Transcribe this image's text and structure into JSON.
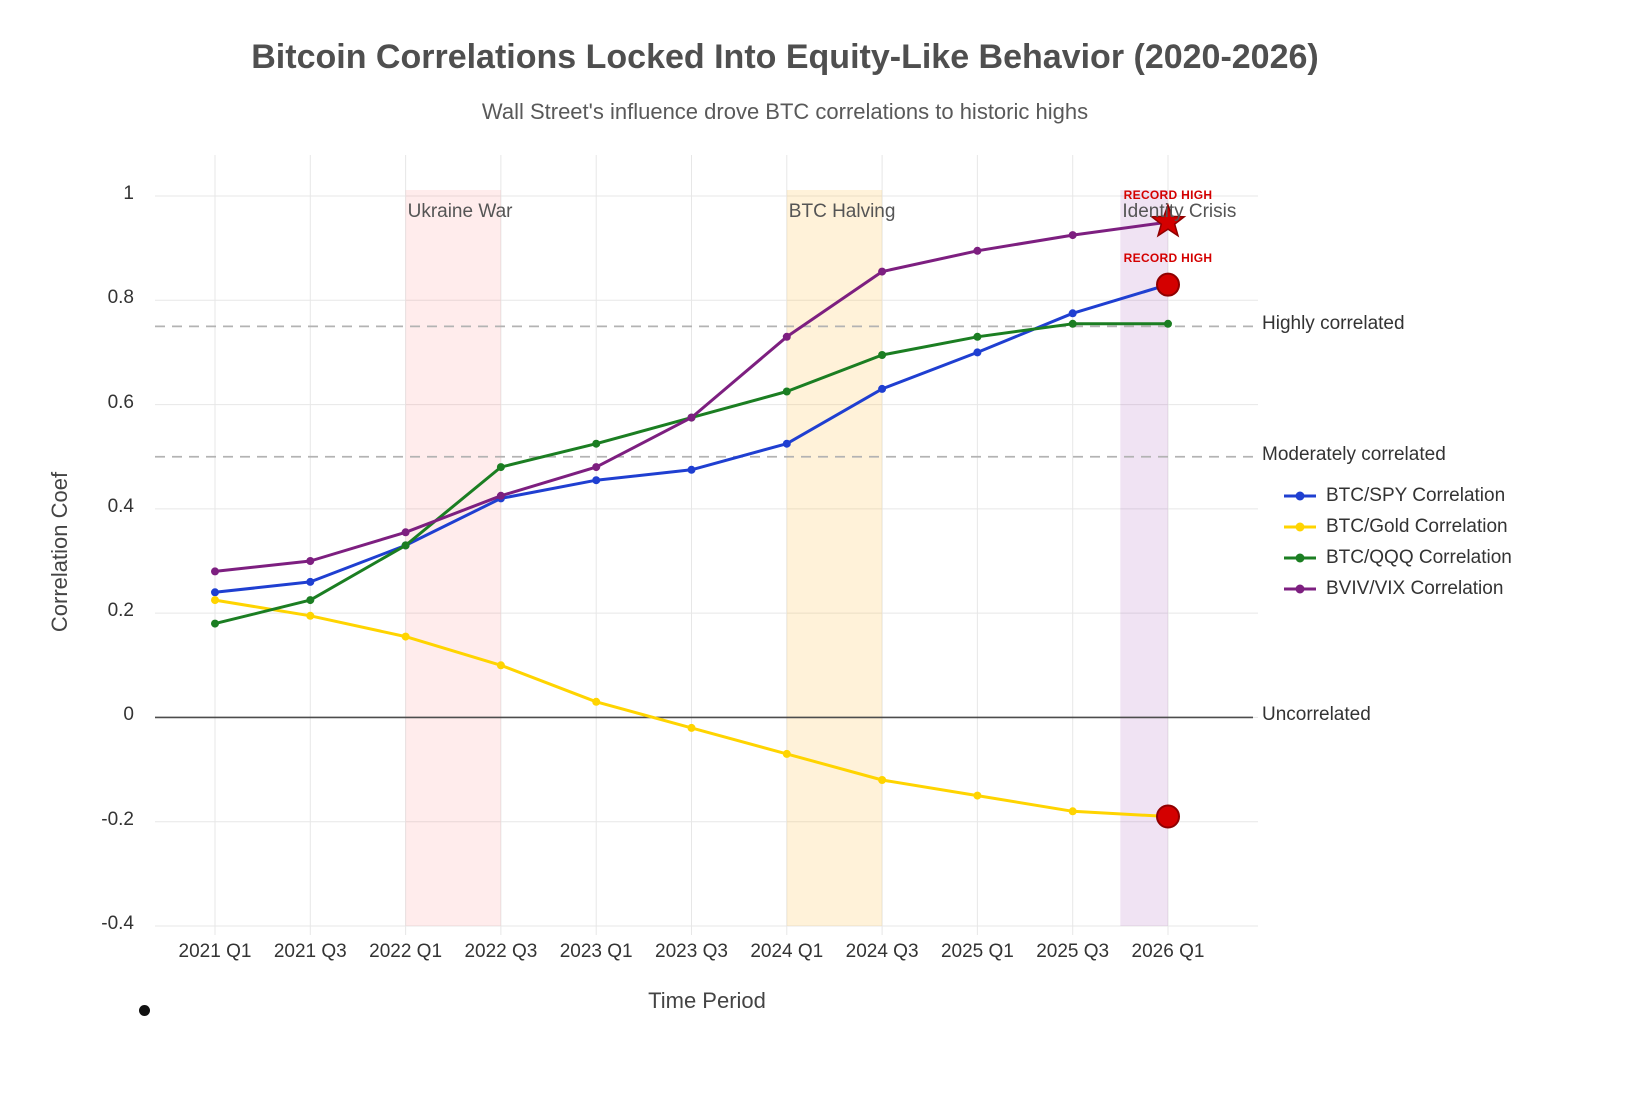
{
  "title": "Bitcoin Correlations Locked Into Equity-Like Behavior (2020-2026)",
  "subtitle": "Wall Street's influence drove BTC correlations to historic highs",
  "chart_data": {
    "type": "line",
    "xlabel": "Time Period",
    "ylabel": "Correlation Coef",
    "categories": [
      "2021 Q1",
      "2021 Q3",
      "2022 Q1",
      "2022 Q3",
      "2023 Q1",
      "2023 Q3",
      "2024 Q1",
      "2024 Q3",
      "2025 Q1",
      "2025 Q3",
      "2026 Q1"
    ],
    "y_ticks": [
      "1",
      "0.8",
      "0.6",
      "0.4",
      "0.2",
      "0",
      "-0.2",
      "-0.4"
    ],
    "ylim": [
      -0.45,
      1.05
    ],
    "grid": true,
    "legend_position": "right",
    "series": [
      {
        "name": "BTC/SPY Correlation",
        "color": "#1f3fd1",
        "values": [
          0.24,
          0.26,
          0.33,
          0.42,
          0.455,
          0.475,
          0.525,
          0.63,
          0.7,
          0.775,
          0.83
        ]
      },
      {
        "name": "BTC/Gold Correlation",
        "color": "#ffd400",
        "values": [
          0.225,
          0.195,
          0.155,
          0.1,
          0.03,
          -0.02,
          -0.07,
          -0.12,
          -0.15,
          -0.18,
          -0.19
        ]
      },
      {
        "name": "BTC/QQQ Correlation",
        "color": "#1b7e22",
        "values": [
          0.18,
          0.225,
          0.33,
          0.48,
          0.525,
          0.575,
          0.625,
          0.695,
          0.73,
          0.755,
          0.755
        ]
      },
      {
        "name": "BVIV/VIX Correlation",
        "color": "#7d1f80",
        "values": [
          0.28,
          0.3,
          0.355,
          0.425,
          0.48,
          0.575,
          0.73,
          0.855,
          0.895,
          0.925,
          0.95
        ]
      }
    ],
    "bands": [
      {
        "label": "Ukraine War",
        "from_index": 2,
        "to_index": 3,
        "color": "rgba(255,40,40,0.09)"
      },
      {
        "label": "BTC Halving",
        "from_index": 6,
        "to_index": 7,
        "color": "rgba(255,175,20,0.16)"
      },
      {
        "label": "Identity Crisis",
        "from_index": 9.5,
        "to_index": 10,
        "color": "rgba(140,40,165,0.13)"
      }
    ],
    "reference_lines": [
      {
        "label": "Highly correlated",
        "value": 0.75,
        "style": "dashed"
      },
      {
        "label": "Moderately correlated",
        "value": 0.5,
        "style": "dashed"
      },
      {
        "label": "Uncorrelated",
        "value": 0,
        "style": "solid"
      }
    ],
    "record_markers": [
      {
        "series": "BVIV/VIX Correlation",
        "category": "2026 Q1",
        "value": 0.95,
        "shape": "star",
        "label": "RECORD HIGH"
      },
      {
        "series": "BTC/SPY Correlation",
        "category": "2026 Q1",
        "value": 0.83,
        "shape": "circle",
        "label": "RECORD HIGH"
      },
      {
        "series": "BTC/Gold Correlation",
        "category": "2026 Q1",
        "value": -0.19,
        "shape": "circle",
        "label": ""
      }
    ]
  },
  "colors": {
    "record": "#d40000",
    "record_stroke": "#8f0000",
    "grid": "#e7e7e7",
    "dashed_line": "#b3b3b3",
    "zero_line": "#4d4d4d",
    "title": "#4f4f4f"
  }
}
